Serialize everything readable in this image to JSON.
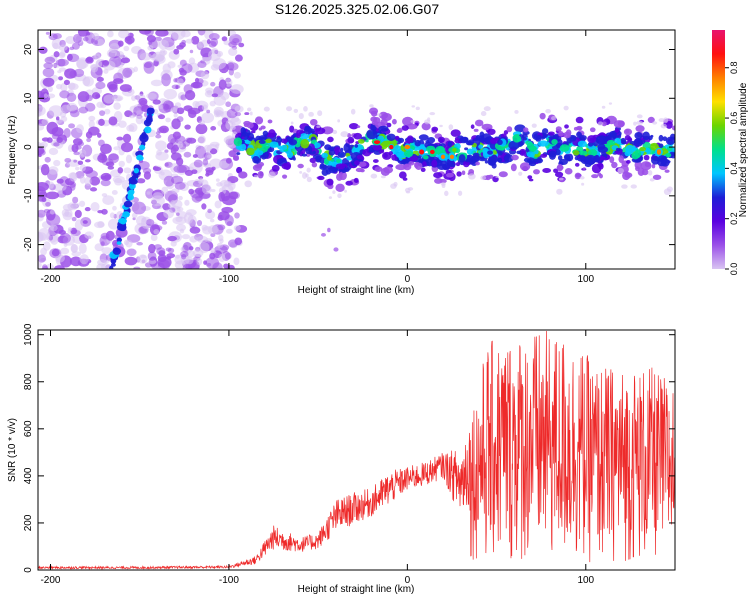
{
  "title": "S126.2025.325.02.06.G07",
  "colors": {
    "spec_ramp": [
      "#d9c4f2",
      "#9b50e8",
      "#5a00e0",
      "#1e1ed6",
      "#00c6ff",
      "#00e08c",
      "#6bd500",
      "#ffe000",
      "#ff8000",
      "#ff1010",
      "#e8126e"
    ],
    "snr_line": "#ee2a2a",
    "axis": "#000000"
  },
  "chart_data": [
    {
      "type": "heatmap",
      "title": "S126.2025.325.02.06.G07",
      "xlabel": "Height of straight line (km)",
      "ylabel": "Frequency (Hz)",
      "xlim": [
        -207,
        150
      ],
      "ylim": [
        -25,
        24
      ],
      "xticks": [
        {
          "value": -200,
          "label": "-200"
        },
        {
          "value": -100,
          "label": "-100"
        },
        {
          "value": 0,
          "label": "0"
        },
        {
          "value": 100,
          "label": "100"
        }
      ],
      "yticks": [
        {
          "value": -20,
          "label": "-20"
        },
        {
          "value": -10,
          "label": "-10"
        },
        {
          "value": 0,
          "label": "0"
        },
        {
          "value": 10,
          "label": "10"
        },
        {
          "value": 20,
          "label": "20"
        }
      ],
      "colorbar": {
        "label": "Normalized spectral amplitude",
        "range": [
          0,
          0.95
        ],
        "ticks": [
          {
            "value": 0.0,
            "label": "0.0"
          },
          {
            "value": 0.2,
            "label": "0.2"
          },
          {
            "value": 0.4,
            "label": "0.4"
          },
          {
            "value": 0.6,
            "label": "0.6"
          },
          {
            "value": 0.8,
            "label": "0.8"
          }
        ]
      },
      "features": [
        {
          "name": "noise region",
          "x_range": [
            -207,
            -93
          ],
          "amplitude": 0.05
        },
        {
          "name": "slanted streak",
          "from": [
            -166,
            -25
          ],
          "to": [
            -143,
            8
          ],
          "amplitude": 0.15
        },
        {
          "name": "main signal band",
          "x_range": [
            -95,
            150
          ],
          "freq_center": 0,
          "amplitude_peak": 0.9
        }
      ],
      "ridge": [
        [
          -92,
          2
        ],
        [
          -85,
          -1
        ],
        [
          -78,
          1
        ],
        [
          -70,
          -1
        ],
        [
          -62,
          0
        ],
        [
          -55,
          2
        ],
        [
          -48,
          -2
        ],
        [
          -40,
          -3
        ],
        [
          -32,
          -2
        ],
        [
          -26,
          0
        ],
        [
          -20,
          2
        ],
        [
          -14,
          1
        ],
        [
          -8,
          0
        ],
        [
          -2,
          -1
        ],
        [
          4,
          0
        ],
        [
          10,
          -1
        ],
        [
          16,
          -1
        ],
        [
          22,
          -2
        ],
        [
          28,
          -1
        ],
        [
          34,
          -1
        ],
        [
          40,
          0
        ],
        [
          48,
          -1
        ],
        [
          55,
          0
        ],
        [
          62,
          2
        ],
        [
          70,
          -1
        ],
        [
          78,
          1
        ],
        [
          86,
          -1
        ],
        [
          94,
          0
        ],
        [
          102,
          -1
        ],
        [
          110,
          0
        ],
        [
          118,
          1
        ],
        [
          126,
          -1
        ],
        [
          134,
          0
        ],
        [
          142,
          -1
        ],
        [
          150,
          0
        ]
      ],
      "hotspots": [
        {
          "x": -17,
          "f": 1,
          "a": 0.9
        },
        {
          "x": -9,
          "f": 0,
          "a": 0.85
        },
        {
          "x": 0,
          "f": 0,
          "a": 0.8
        },
        {
          "x": 8,
          "f": -1,
          "a": 0.85
        },
        {
          "x": 14,
          "f": -1,
          "a": 0.9
        },
        {
          "x": 20,
          "f": -2,
          "a": 0.8
        },
        {
          "x": 25,
          "f": -2,
          "a": 0.75
        },
        {
          "x": 141,
          "f": -1,
          "a": 0.8
        }
      ]
    },
    {
      "type": "line",
      "xlabel": "Height of straight line (km)",
      "ylabel": "SNR (10 * v/v)",
      "xlim": [
        -207,
        150
      ],
      "ylim": [
        0,
        1020
      ],
      "xticks": [
        {
          "value": -200,
          "label": "-200"
        },
        {
          "value": -100,
          "label": "-100"
        },
        {
          "value": 0,
          "label": "0"
        },
        {
          "value": 100,
          "label": "100"
        }
      ],
      "yticks": [
        {
          "value": 0,
          "label": "0"
        },
        {
          "value": 200,
          "label": "200"
        },
        {
          "value": 400,
          "label": "400"
        },
        {
          "value": 600,
          "label": "600"
        },
        {
          "value": 800,
          "label": "800"
        },
        {
          "value": 1000,
          "label": "1000"
        }
      ],
      "series": [
        {
          "name": "SNR",
          "envelope": [
            {
              "x": -207,
              "min": 0,
              "max": 15
            },
            {
              "x": -150,
              "min": 0,
              "max": 15
            },
            {
              "x": -100,
              "min": 2,
              "max": 18
            },
            {
              "x": -85,
              "min": 5,
              "max": 60
            },
            {
              "x": -75,
              "min": 30,
              "max": 190
            },
            {
              "x": -60,
              "min": 40,
              "max": 140
            },
            {
              "x": -50,
              "min": 50,
              "max": 160
            },
            {
              "x": -40,
              "min": 80,
              "max": 300
            },
            {
              "x": -30,
              "min": 120,
              "max": 330
            },
            {
              "x": -20,
              "min": 160,
              "max": 350
            },
            {
              "x": -10,
              "min": 200,
              "max": 420
            },
            {
              "x": 0,
              "min": 280,
              "max": 440
            },
            {
              "x": 10,
              "min": 300,
              "max": 460
            },
            {
              "x": 20,
              "min": 330,
              "max": 500
            },
            {
              "x": 30,
              "min": 60,
              "max": 520
            },
            {
              "x": 45,
              "min": 20,
              "max": 970
            },
            {
              "x": 60,
              "min": 20,
              "max": 1010
            },
            {
              "x": 75,
              "min": 30,
              "max": 1020
            },
            {
              "x": 90,
              "min": 30,
              "max": 1000
            },
            {
              "x": 105,
              "min": 20,
              "max": 880
            },
            {
              "x": 120,
              "min": 30,
              "max": 860
            },
            {
              "x": 135,
              "min": 20,
              "max": 870
            },
            {
              "x": 150,
              "min": 60,
              "max": 800
            }
          ]
        }
      ]
    }
  ]
}
